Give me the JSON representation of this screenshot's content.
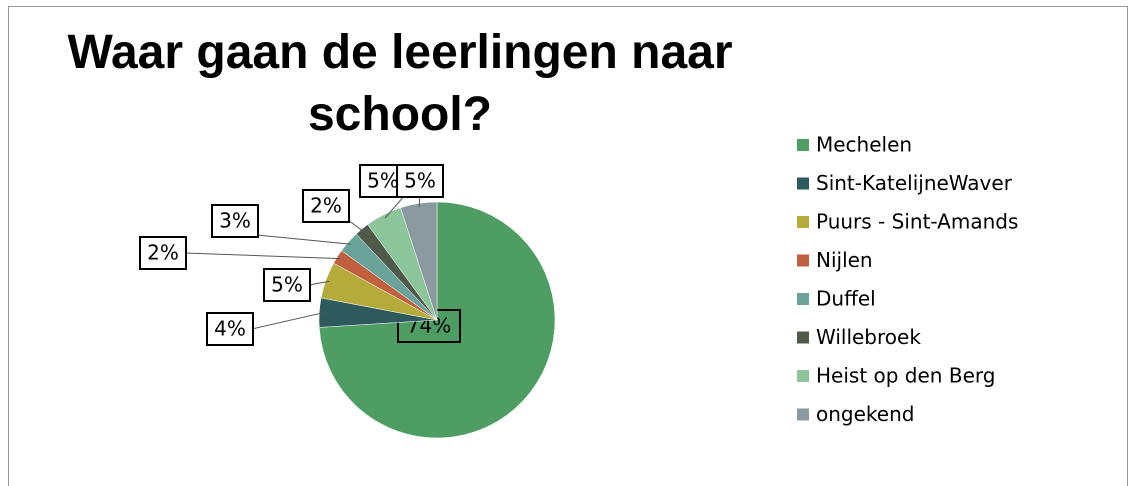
{
  "chart_data": {
    "type": "pie",
    "title": "Waar gaan de leerlingen naar school?",
    "categories": [
      "Mechelen",
      "Sint-KatelijneWaver",
      "Puurs - Sint-Amands",
      "Nijlen",
      "Duffel",
      "Willebroek",
      "Heist op den Berg",
      "ongekend"
    ],
    "values": [
      74,
      4,
      5,
      2,
      3,
      2,
      5,
      5
    ],
    "value_labels": [
      "74%",
      "4%",
      "5%",
      "2%",
      "3%",
      "2%",
      "5%",
      "5%"
    ],
    "colors": [
      "#4e9e63",
      "#2e5a5e",
      "#b5ab3a",
      "#c0603f",
      "#6aa39a",
      "#4f5a4a",
      "#8cc59a",
      "#8a9aa0"
    ],
    "legend": "right"
  }
}
